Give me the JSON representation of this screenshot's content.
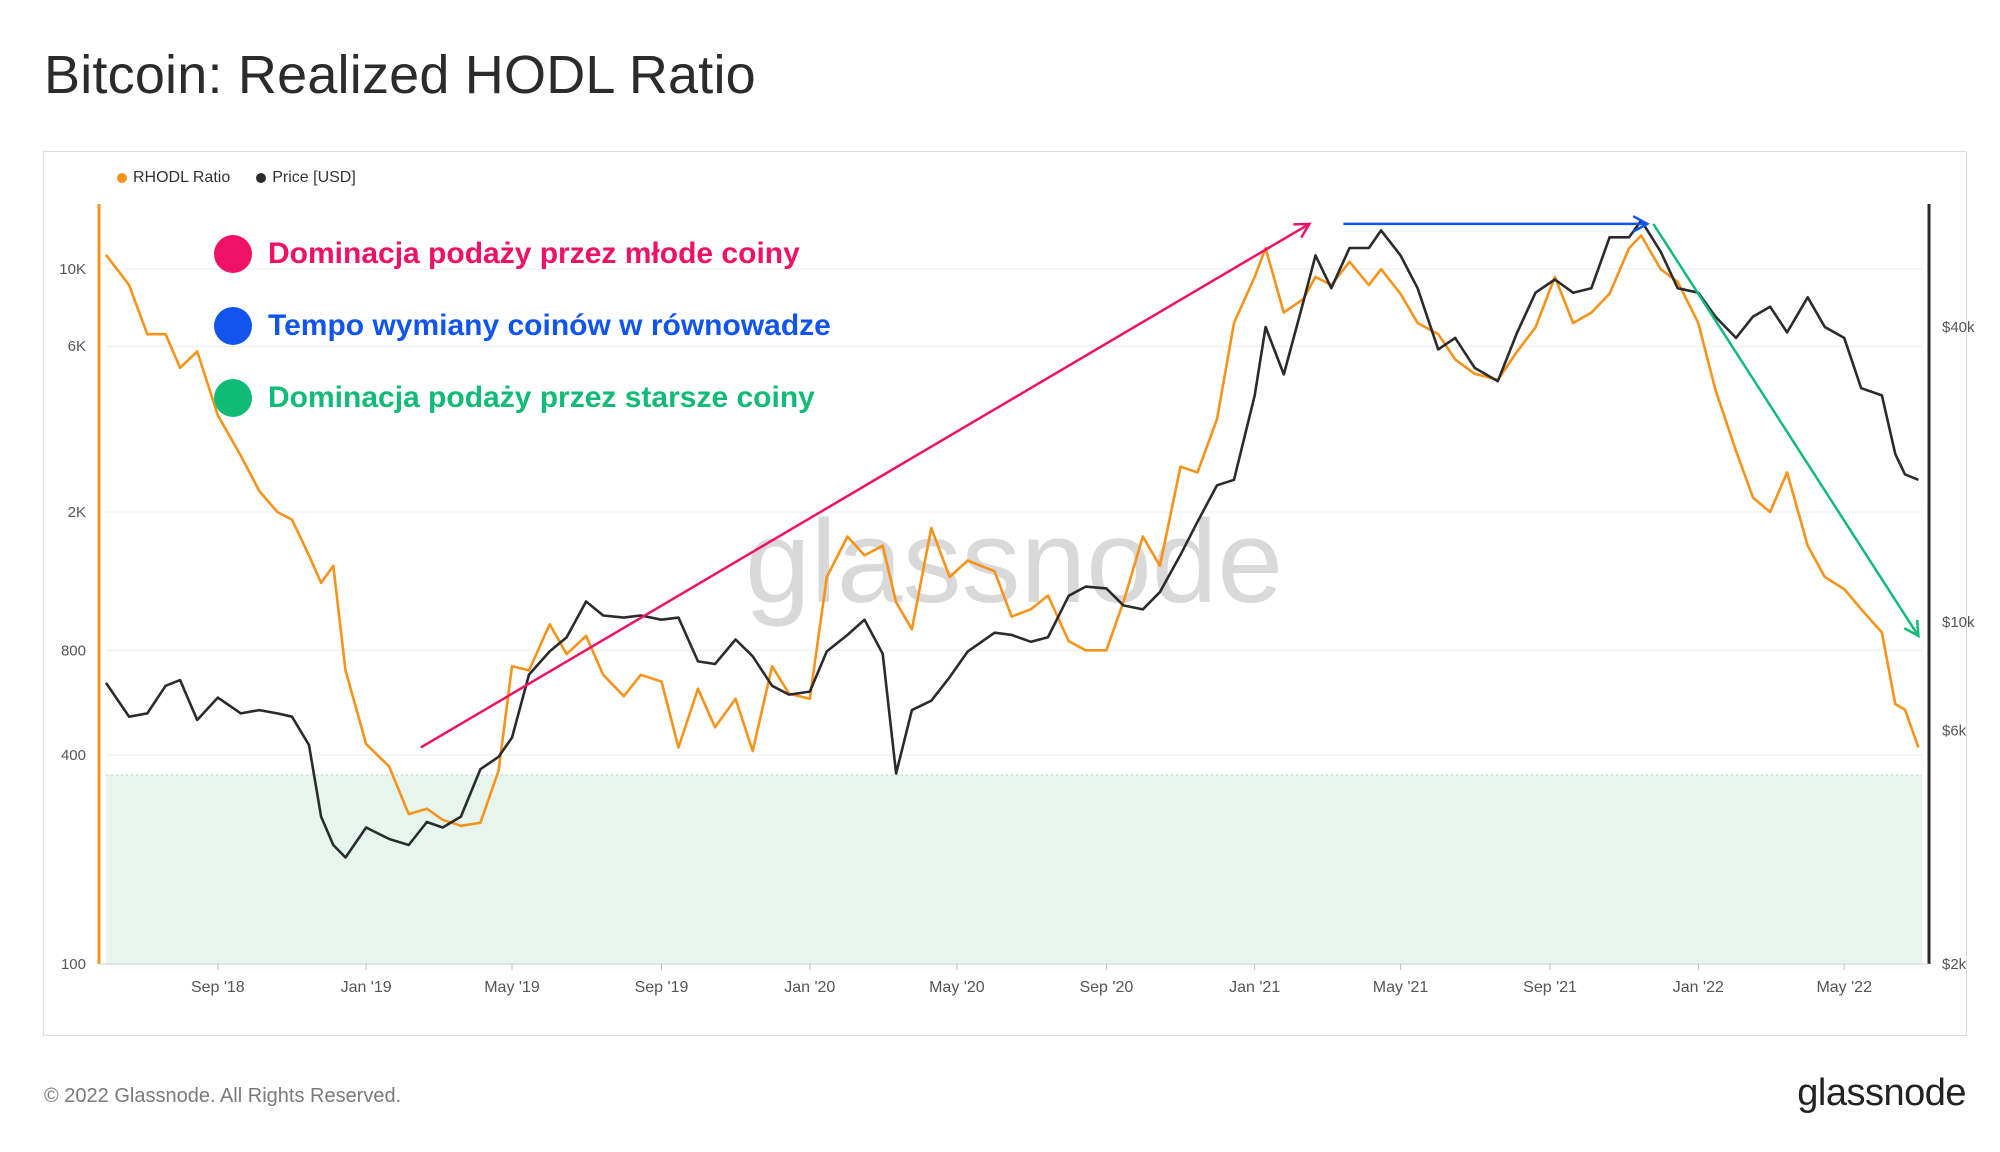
{
  "title": "Bitcoin: Realized HODL Ratio",
  "legend": [
    {
      "label": "RHODL Ratio",
      "color": "#f7931a"
    },
    {
      "label": "Price [USD]",
      "color": "#2b2b2b"
    }
  ],
  "annotations": [
    {
      "text": "Dominacja podaży przez młode coiny",
      "color": "#ee1166"
    },
    {
      "text": "Tempo wymiany coinów w równowadze",
      "color": "#1155ee"
    },
    {
      "text": "Dominacja podaży przez starsze coiny",
      "color": "#11bb77"
    }
  ],
  "watermark": "glassnode",
  "footer": {
    "copyright": "© 2022 Glassnode. All Rights Reserved.",
    "logo": "glassnode"
  },
  "chart_data": {
    "type": "line",
    "title": "Bitcoin: Realized HODL Ratio",
    "x_axis": {
      "type": "date",
      "range": [
        "2018-06-01",
        "2022-07-04"
      ],
      "tick_labels": [
        "Sep '18",
        "Jan '19",
        "May '19",
        "Sep '19",
        "Jan '20",
        "May '20",
        "Sep '20",
        "Jan '21",
        "May '21",
        "Sep '21",
        "Jan '22",
        "May '22"
      ],
      "tick_dates": [
        "2018-09-01",
        "2019-01-01",
        "2019-05-01",
        "2019-09-01",
        "2020-01-01",
        "2020-05-01",
        "2020-09-01",
        "2021-01-01",
        "2021-05-01",
        "2021-09-01",
        "2022-01-01",
        "2022-05-01"
      ]
    },
    "y_left": {
      "scale": "log",
      "range": [
        100,
        15000
      ],
      "tick_labels": [
        "100",
        "400",
        "800",
        "2K",
        "6K",
        "10K"
      ],
      "tick_values": [
        100,
        400,
        800,
        2000,
        6000,
        10000
      ]
    },
    "y_right": {
      "scale": "log",
      "range": [
        2000,
        70000
      ],
      "tick_labels": [
        "$2k",
        "$6k",
        "$10k",
        "$40k"
      ],
      "tick_values": [
        2000,
        6000,
        10000,
        40000
      ]
    },
    "grid": true,
    "legend_position": "top-left",
    "shaded_zone": {
      "axis": "left",
      "from": 100,
      "to": 350,
      "color": "#e6f5ee"
    },
    "series": [
      {
        "name": "RHODL Ratio",
        "axis": "left",
        "color": "#f7931a",
        "x": [
          "2018-06-01",
          "2018-06-20",
          "2018-07-05",
          "2018-07-20",
          "2018-08-01",
          "2018-08-15",
          "2018-09-01",
          "2018-09-20",
          "2018-10-05",
          "2018-10-20",
          "2018-11-01",
          "2018-11-15",
          "2018-11-25",
          "2018-12-05",
          "2018-12-15",
          "2019-01-01",
          "2019-01-20",
          "2019-02-05",
          "2019-02-20",
          "2019-03-05",
          "2019-03-20",
          "2019-04-05",
          "2019-04-20",
          "2019-05-01",
          "2019-05-15",
          "2019-06-01",
          "2019-06-15",
          "2019-07-01",
          "2019-07-15",
          "2019-08-01",
          "2019-08-15",
          "2019-09-01",
          "2019-09-15",
          "2019-10-01",
          "2019-10-15",
          "2019-11-01",
          "2019-11-15",
          "2019-12-01",
          "2019-12-15",
          "2020-01-01",
          "2020-01-15",
          "2020-02-01",
          "2020-02-15",
          "2020-03-01",
          "2020-03-12",
          "2020-03-25",
          "2020-04-10",
          "2020-04-25",
          "2020-05-10",
          "2020-06-01",
          "2020-06-15",
          "2020-07-01",
          "2020-07-15",
          "2020-08-01",
          "2020-08-15",
          "2020-09-01",
          "2020-09-15",
          "2020-10-01",
          "2020-10-15",
          "2020-11-01",
          "2020-11-15",
          "2020-12-01",
          "2020-12-15",
          "2021-01-01",
          "2021-01-10",
          "2021-01-25",
          "2021-02-10",
          "2021-02-20",
          "2021-03-05",
          "2021-03-20",
          "2021-04-05",
          "2021-04-15",
          "2021-05-01",
          "2021-05-15",
          "2021-06-01",
          "2021-06-15",
          "2021-07-01",
          "2021-07-20",
          "2021-08-05",
          "2021-08-20",
          "2021-09-05",
          "2021-09-20",
          "2021-10-05",
          "2021-10-20",
          "2021-11-05",
          "2021-11-15",
          "2021-12-01",
          "2021-12-15",
          "2022-01-01",
          "2022-01-15",
          "2022-02-01",
          "2022-02-15",
          "2022-03-01",
          "2022-03-15",
          "2022-04-01",
          "2022-04-15",
          "2022-05-01",
          "2022-05-15",
          "2022-06-01",
          "2022-06-12",
          "2022-06-20",
          "2022-07-01"
        ],
        "y": [
          11000,
          9000,
          6500,
          6500,
          5200,
          5800,
          3800,
          2900,
          2300,
          2000,
          1900,
          1500,
          1250,
          1400,
          700,
          430,
          370,
          270,
          280,
          260,
          250,
          255,
          360,
          720,
          700,
          950,
          780,
          880,
          680,
          590,
          680,
          650,
          420,
          620,
          480,
          580,
          410,
          720,
          600,
          580,
          1300,
          1700,
          1500,
          1600,
          1100,
          920,
          1800,
          1300,
          1450,
          1350,
          1000,
          1050,
          1150,
          850,
          800,
          800,
          1100,
          1700,
          1400,
          2700,
          2600,
          3700,
          7000,
          9500,
          11500,
          7500,
          8200,
          9500,
          9000,
          10500,
          9000,
          10000,
          8500,
          7000,
          6500,
          5500,
          5000,
          4800,
          5800,
          6800,
          9500,
          7000,
          7500,
          8500,
          11500,
          12500,
          10000,
          9200,
          7000,
          4500,
          3000,
          2200,
          2000,
          2600,
          1600,
          1300,
          1200,
          1050,
          900,
          560,
          540,
          420
        ]
      },
      {
        "name": "Price [USD]",
        "axis": "right",
        "color": "#2b2b2b",
        "x": [
          "2018-06-01",
          "2018-06-20",
          "2018-07-05",
          "2018-07-20",
          "2018-08-01",
          "2018-08-15",
          "2018-09-01",
          "2018-09-20",
          "2018-10-05",
          "2018-10-20",
          "2018-11-01",
          "2018-11-15",
          "2018-11-25",
          "2018-12-05",
          "2018-12-15",
          "2019-01-01",
          "2019-01-20",
          "2019-02-05",
          "2019-02-20",
          "2019-03-05",
          "2019-03-20",
          "2019-04-05",
          "2019-04-20",
          "2019-05-01",
          "2019-05-15",
          "2019-06-01",
          "2019-06-15",
          "2019-07-01",
          "2019-07-15",
          "2019-08-01",
          "2019-08-15",
          "2019-09-01",
          "2019-09-15",
          "2019-10-01",
          "2019-10-15",
          "2019-11-01",
          "2019-11-15",
          "2019-12-01",
          "2019-12-15",
          "2020-01-01",
          "2020-01-15",
          "2020-02-01",
          "2020-02-15",
          "2020-03-01",
          "2020-03-12",
          "2020-03-25",
          "2020-04-10",
          "2020-04-25",
          "2020-05-10",
          "2020-06-01",
          "2020-06-15",
          "2020-07-01",
          "2020-07-15",
          "2020-08-01",
          "2020-08-15",
          "2020-09-01",
          "2020-09-15",
          "2020-10-01",
          "2020-10-15",
          "2020-11-01",
          "2020-11-15",
          "2020-12-01",
          "2020-12-15",
          "2021-01-01",
          "2021-01-10",
          "2021-01-25",
          "2021-02-10",
          "2021-02-20",
          "2021-03-05",
          "2021-03-20",
          "2021-04-05",
          "2021-04-15",
          "2021-05-01",
          "2021-05-15",
          "2021-06-01",
          "2021-06-15",
          "2021-07-01",
          "2021-07-20",
          "2021-08-05",
          "2021-08-20",
          "2021-09-05",
          "2021-09-20",
          "2021-10-05",
          "2021-10-20",
          "2021-11-05",
          "2021-11-15",
          "2021-12-01",
          "2021-12-15",
          "2022-01-01",
          "2022-01-15",
          "2022-02-01",
          "2022-02-15",
          "2022-03-01",
          "2022-03-15",
          "2022-04-01",
          "2022-04-15",
          "2022-05-01",
          "2022-05-15",
          "2022-06-01",
          "2022-06-12",
          "2022-06-20",
          "2022-07-01"
        ],
        "y": [
          7500,
          6400,
          6500,
          7400,
          7600,
          6300,
          7000,
          6500,
          6600,
          6500,
          6400,
          5600,
          4000,
          3500,
          3300,
          3800,
          3600,
          3500,
          3900,
          3800,
          4000,
          5000,
          5300,
          5800,
          7800,
          8700,
          9300,
          11000,
          10300,
          10200,
          10300,
          10100,
          10200,
          8300,
          8200,
          9200,
          8500,
          7400,
          7100,
          7200,
          8700,
          9400,
          10100,
          8600,
          4900,
          6600,
          6900,
          7700,
          8700,
          9500,
          9400,
          9100,
          9300,
          11300,
          11800,
          11700,
          10800,
          10600,
          11500,
          13700,
          16000,
          19000,
          19500,
          29000,
          40000,
          32000,
          45000,
          56000,
          48000,
          58000,
          58000,
          63000,
          56000,
          48000,
          36000,
          38000,
          33000,
          31000,
          39000,
          47000,
          50000,
          47000,
          48000,
          61000,
          61000,
          66000,
          57000,
          48000,
          47000,
          42000,
          38000,
          42000,
          44000,
          39000,
          46000,
          40000,
          38000,
          30000,
          29000,
          22000,
          20000,
          19500
        ]
      }
    ],
    "arrows": [
      {
        "color": "#ee1166",
        "from": [
          "2019-02-15",
          420
        ],
        "to": [
          "2021-02-15",
          13500
        ]
      },
      {
        "color": "#1155ee",
        "from": [
          "2021-03-15",
          13500
        ],
        "to": [
          "2021-11-20",
          13500
        ]
      },
      {
        "color": "#11bb77",
        "from": [
          "2021-11-25",
          13500
        ],
        "to": [
          "2022-07-01",
          880
        ]
      }
    ]
  }
}
